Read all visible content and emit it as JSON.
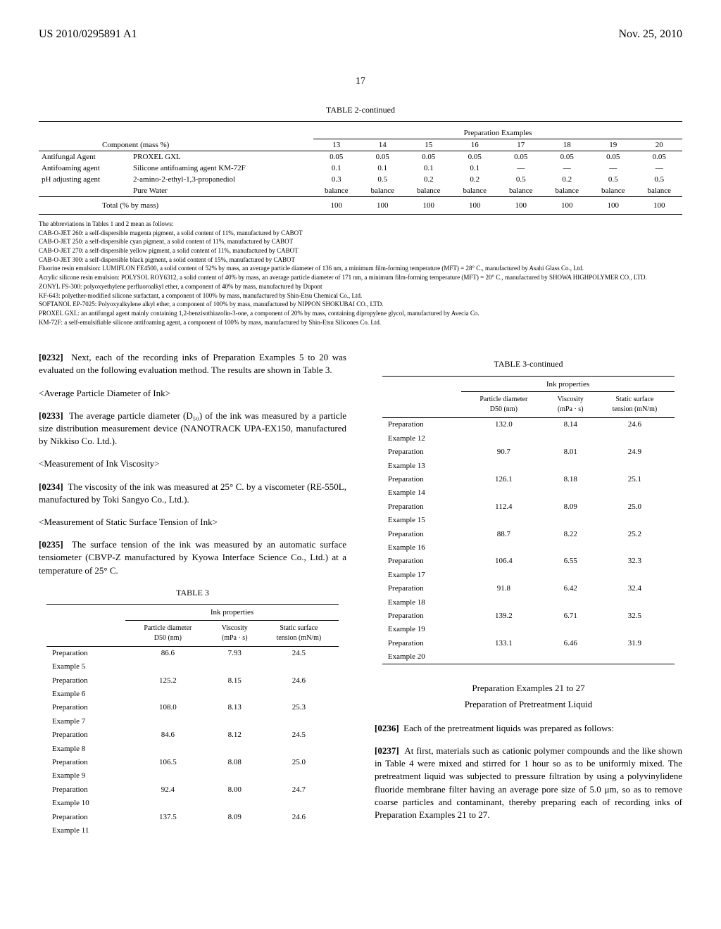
{
  "header": {
    "left": "US 2010/0295891 A1",
    "right": "Nov. 25, 2010"
  },
  "pageNum": "17",
  "table2": {
    "title": "TABLE 2-continued",
    "groupHeader": "Preparation Examples",
    "componentHeader": "Component (mass %)",
    "cols": [
      "13",
      "14",
      "15",
      "16",
      "17",
      "18",
      "19",
      "20"
    ],
    "rows": [
      {
        "cat": "Antifungal Agent",
        "name": "PROXEL GXL",
        "v": [
          "0.05",
          "0.05",
          "0.05",
          "0.05",
          "0.05",
          "0.05",
          "0.05",
          "0.05"
        ]
      },
      {
        "cat": "Antifoaming agent",
        "name": "Silicone antifoaming agent KM-72F",
        "v": [
          "0.1",
          "0.1",
          "0.1",
          "0.1",
          "—",
          "—",
          "—",
          "—"
        ]
      },
      {
        "cat": "pH adjusting agent",
        "name": "2-amino-2-ethyl-1,3-propanediol",
        "v": [
          "0.3",
          "0.5",
          "0.2",
          "0.2",
          "0.5",
          "0.2",
          "0.5",
          "0.5"
        ]
      },
      {
        "cat": "",
        "name": "Pure Water",
        "v": [
          "balance",
          "balance",
          "balance",
          "balance",
          "balance",
          "balance",
          "balance",
          "balance"
        ]
      }
    ],
    "totalLabel": "Total (% by mass)",
    "totalVals": [
      "100",
      "100",
      "100",
      "100",
      "100",
      "100",
      "100",
      "100"
    ]
  },
  "footnotes": [
    "The abbreviations in Tables 1 and 2 mean as follows:",
    "CAB-O-JET 260: a self-dispersible magenta pigment, a solid content of 11%, manufactured by CABOT",
    "CAB-O-JET 250: a self-dispersible cyan pigment, a solid content of 11%, manufactured by CABOT",
    "CAB-O-JET 270: a self-dispersible yellow pigment, a solid content of 11%, manufactured by CABOT",
    "CAB-O-JET 300: a self-dispersible black pigment, a solid content of 15%, manufactured by CABOT",
    "Fluorine resin emulsion: LUMIFLON FE4500, a solid content of 52% by mass, an average particle diameter of 136 nm, a minimum film-forming temperature (MFT) = 28° C., manufactured by Asahi Glass Co., Ltd.",
    "Acrylic silicone resin emulsion: POLYSOL ROY6312, a solid content of 40% by mass, an average particle diameter of 171 nm, a minimum film-forming temperature (MFT) = 20° C., manufactured by SHOWA HIGHPOLYMER CO., LTD.",
    "ZONYL FS-300: polyoxyethylene perfluoroalkyl ether, a component of 40% by mass, manufactured by Dupont",
    "KF-643: polyether-modified silicone surfactant, a component of 100% by mass, manufactured by Shin-Etsu Chemical Co., Ltd.",
    "SOFTANOL EP-7025: Polyoxyalkylene alkyl ether, a component of 100% by mass, manufactured by NIPPON SHOKUBAI CO., LTD.",
    "PROXEL GXL: an antifungal agent mainly containing 1,2-benzisothiazolin-3-one, a component of 20% by mass, containing dipropylene glycol, manufactured by Avecia Co.",
    "KM-72F: a self-emulsifiable silicone antifoaming agent, a component of 100% by mass, manufactured by Shin-Etsu Silicones Co. Ltd."
  ],
  "leftCol": {
    "p0232": "Next, each of the recording inks of Preparation Examples 5 to 20 was evaluated on the following evaluation method. The results are shown in Table 3.",
    "h1": "<Average Particle Diameter of Ink>",
    "p0233": "The average particle diameter (D₅₀) of the ink was measured by a particle size distribution measurement device (NANOTRACK UPA-EX150, manufactured by Nikkiso Co. Ltd.).",
    "h2": "<Measurement of Ink Viscosity>",
    "p0234": "The viscosity of the ink was measured at 25° C. by a viscometer (RE-550L, manufactured by Toki Sangyo Co., Ltd.).",
    "h3": "<Measurement of Static Surface Tension of Ink>",
    "p0235": "The surface tension of the ink was measured by an automatic surface tensiometer (CBVP-Z manufactured by Kyowa Interface Science Co., Ltd.) at a temperature of 25° C."
  },
  "table3": {
    "title": "TABLE 3",
    "groupHeader": "Ink properties",
    "headers": [
      "Particle diameter D50 (nm)",
      "Viscosity (mPa · s)",
      "Static surface tension (mN/m)"
    ],
    "leftRows": [
      {
        "label": "Preparation Example 5",
        "v": [
          "86.6",
          "7.93",
          "24.5"
        ]
      },
      {
        "label": "Preparation Example 6",
        "v": [
          "125.2",
          "8.15",
          "24.6"
        ]
      },
      {
        "label": "Preparation Example 7",
        "v": [
          "108.0",
          "8.13",
          "25.3"
        ]
      },
      {
        "label": "Preparation Example 8",
        "v": [
          "84.6",
          "8.12",
          "24.5"
        ]
      },
      {
        "label": "Preparation Example 9",
        "v": [
          "106.5",
          "8.08",
          "25.0"
        ]
      },
      {
        "label": "Preparation Example 10",
        "v": [
          "92.4",
          "8.00",
          "24.7"
        ]
      },
      {
        "label": "Preparation Example 11",
        "v": [
          "137.5",
          "8.09",
          "24.6"
        ]
      }
    ],
    "rightTitle": "TABLE 3-continued",
    "rightRows": [
      {
        "label": "Preparation Example 12",
        "v": [
          "132.0",
          "8.14",
          "24.6"
        ]
      },
      {
        "label": "Preparation Example 13",
        "v": [
          "90.7",
          "8.01",
          "24.9"
        ]
      },
      {
        "label": "Preparation Example 14",
        "v": [
          "126.1",
          "8.18",
          "25.1"
        ]
      },
      {
        "label": "Preparation Example 15",
        "v": [
          "112.4",
          "8.09",
          "25.0"
        ]
      },
      {
        "label": "Preparation Example 16",
        "v": [
          "88.7",
          "8.22",
          "25.2"
        ]
      },
      {
        "label": "Preparation Example 17",
        "v": [
          "106.4",
          "6.55",
          "32.3"
        ]
      },
      {
        "label": "Preparation Example 18",
        "v": [
          "91.8",
          "6.42",
          "32.4"
        ]
      },
      {
        "label": "Preparation Example 19",
        "v": [
          "139.2",
          "6.71",
          "32.5"
        ]
      },
      {
        "label": "Preparation Example 20",
        "v": [
          "133.1",
          "6.46",
          "31.9"
        ]
      }
    ]
  },
  "rightCol": {
    "prepHead": "Preparation Examples 21 to 27",
    "prepSub": "Preparation of Pretreatment Liquid",
    "p0236": "Each of the pretreatment liquids was prepared as follows:",
    "p0237": "At first, materials such as cationic polymer compounds and the like shown in Table 4 were mixed and stirred for 1 hour so as to be uniformly mixed. The pretreatment liquid was subjected to pressure filtration by using a polyvinylidene fluoride membrane filter having an average pore size of 5.0 μm, so as to remove coarse particles and contaminant, thereby preparing each of recording inks of Preparation Examples 21 to 27."
  }
}
